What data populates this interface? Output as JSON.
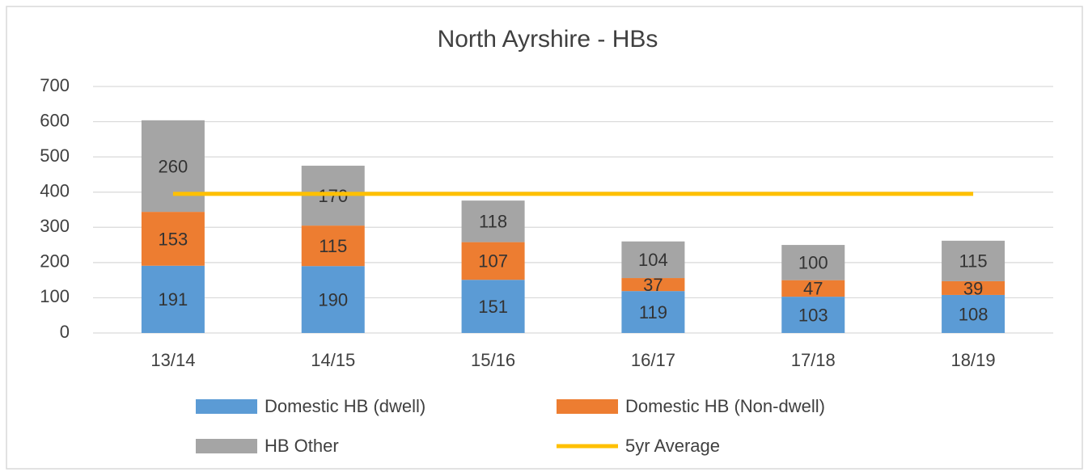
{
  "chart_data": {
    "type": "bar",
    "stacked": true,
    "title": "North Ayrshire - HBs",
    "categories": [
      "13/14",
      "14/15",
      "15/16",
      "16/17",
      "17/18",
      "18/19"
    ],
    "series": [
      {
        "name": "Domestic HB (dwell)",
        "color": "#5b9bd5",
        "values": [
          191,
          190,
          151,
          119,
          103,
          108
        ]
      },
      {
        "name": "Domestic HB (Non-dwell)",
        "color": "#ed7d31",
        "values": [
          153,
          115,
          107,
          37,
          47,
          39
        ]
      },
      {
        "name": "HB Other",
        "color": "#a5a5a5",
        "values": [
          260,
          170,
          118,
          104,
          100,
          115
        ]
      },
      {
        "name": "5yr Average",
        "color": "#ffc000",
        "type": "line",
        "values": [
          395,
          395,
          395,
          395,
          395,
          395
        ]
      }
    ],
    "ylim": [
      0,
      700
    ],
    "yticks": [
      0,
      100,
      200,
      300,
      400,
      500,
      600,
      700
    ],
    "grid": true,
    "legend": "bottom"
  }
}
